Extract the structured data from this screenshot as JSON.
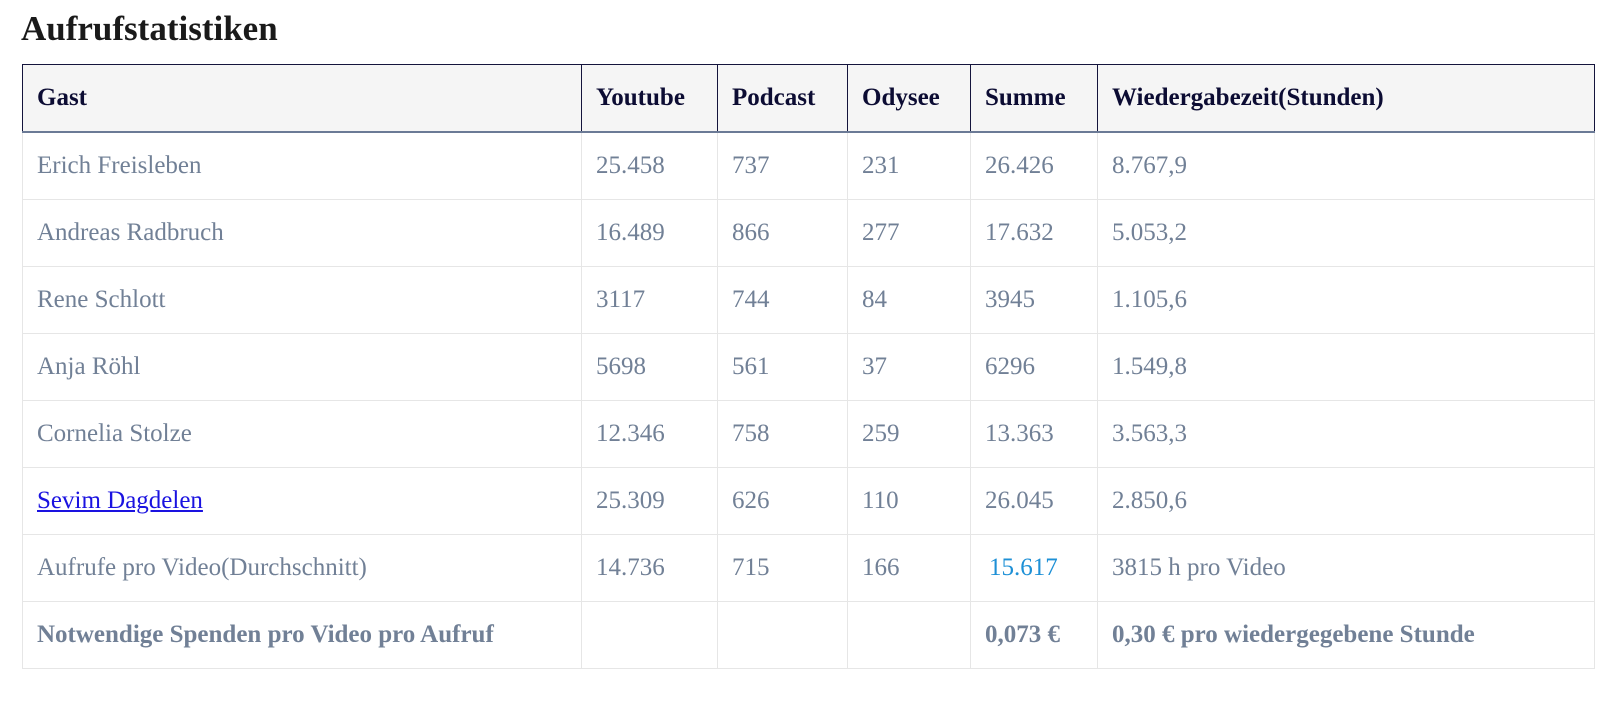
{
  "page": {
    "title": "Aufrufstatistiken"
  },
  "table": {
    "headers": [
      "Gast",
      "Youtube",
      "Podcast",
      "Odysee",
      "Summe",
      "Wiedergabezeit(Stunden)"
    ],
    "rows": [
      {
        "gast": "Erich Freisleben",
        "youtube": "25.458",
        "podcast": "737",
        "odysee": "231",
        "summe": "26.426",
        "wiedergabezeit": "8.767,9"
      },
      {
        "gast": "Andreas Radbruch",
        "youtube": "16.489",
        "podcast": "866",
        "odysee": "277",
        "summe": "17.632",
        "wiedergabezeit": "5.053,2"
      },
      {
        "gast": "Rene Schlott",
        "youtube": "3117",
        "podcast": "744",
        "odysee": "84",
        "summe": "3945",
        "wiedergabezeit": "1.105,6"
      },
      {
        "gast": "Anja Röhl",
        "youtube": "5698",
        "podcast": "561",
        "odysee": "37",
        "summe": "6296",
        "wiedergabezeit": "1.549,8"
      },
      {
        "gast": "Cornelia Stolze",
        "youtube": "12.346",
        "podcast": "758",
        "odysee": "259",
        "summe": "13.363",
        "wiedergabezeit": "3.563,3"
      },
      {
        "gast": "Sevim Dagdelen",
        "youtube": "25.309",
        "podcast": "626",
        "odysee": "110",
        "summe": "26.045",
        "wiedergabezeit": "2.850,6"
      },
      {
        "gast": "Aufrufe pro Video(Durchschnitt)",
        "youtube": "14.736",
        "podcast": "715",
        "odysee": "166",
        "summe": "15.617",
        "wiedergabezeit": "3815 h pro Video"
      },
      {
        "gast": "Notwendige Spenden pro Video pro Aufruf",
        "youtube": "",
        "podcast": "",
        "odysee": "",
        "summe": "0,073 €",
        "wiedergabezeit": "0,30 € pro wiedergegebene Stunde"
      }
    ]
  },
  "colors": {
    "header_text": "#0c0c33",
    "cell_text": "#718096",
    "link": "#1a12e0",
    "highlight": "#1e90d6"
  }
}
